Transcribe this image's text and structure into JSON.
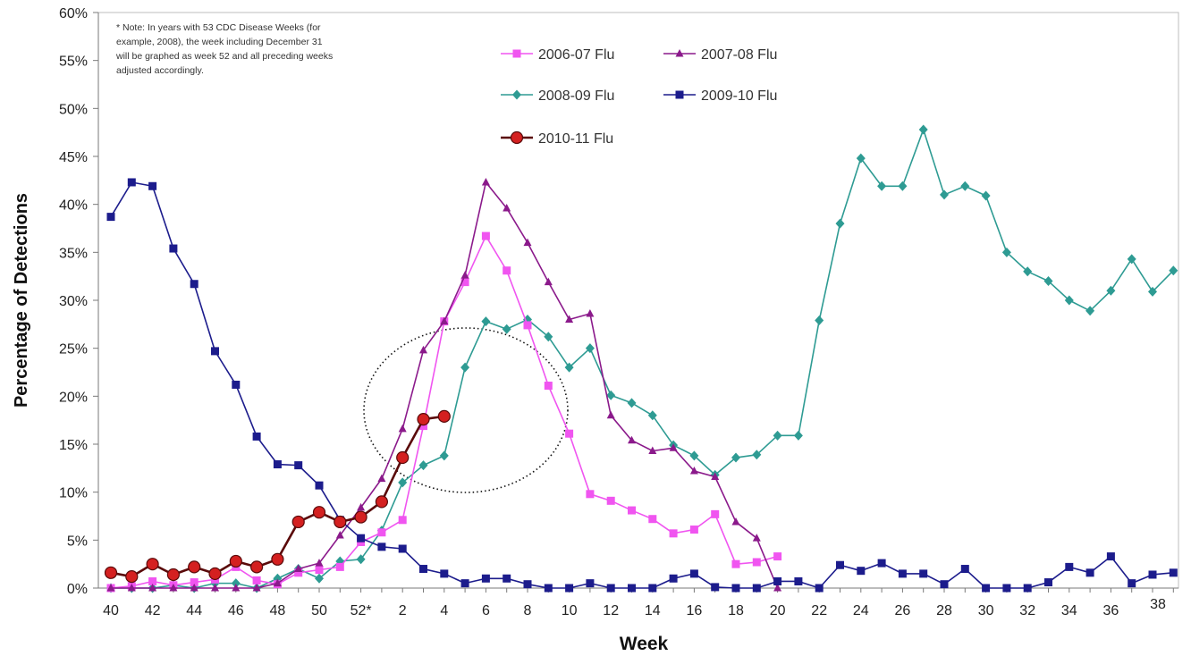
{
  "chart_data": {
    "type": "line",
    "ylabel": "Percentage of Detections",
    "xlabel": "Week",
    "ylim": [
      0,
      60
    ],
    "y_ticks": [
      "0%",
      "5%",
      "10%",
      "15%",
      "20%",
      "25%",
      "30%",
      "35%",
      "40%",
      "45%",
      "50%",
      "55%",
      "60%"
    ],
    "x_tick_labels": [
      "40",
      "42",
      "44",
      "46",
      "48",
      "50",
      "52*",
      "2",
      "4",
      "6",
      "8",
      "10",
      "12",
      "14",
      "16",
      "18",
      "20",
      "22",
      "24",
      "26",
      "28",
      "30",
      "32",
      "34",
      "36",
      "38"
    ],
    "x_categories": [
      "40",
      "41",
      "42",
      "43",
      "44",
      "45",
      "46",
      "47",
      "48",
      "49",
      "50",
      "51",
      "52",
      "1",
      "2",
      "3",
      "4",
      "5",
      "6",
      "7",
      "8",
      "9",
      "10",
      "11",
      "12",
      "13",
      "14",
      "15",
      "16",
      "17",
      "18",
      "19",
      "20",
      "21",
      "22",
      "23",
      "24",
      "25",
      "26",
      "27",
      "28",
      "29",
      "30",
      "31",
      "32",
      "33",
      "34",
      "35",
      "36",
      "37",
      "38",
      "39"
    ],
    "note": [
      "* Note: In years with 53 CDC Disease Weeks (for",
      "example, 2008), the week including December 31",
      "will be graphed as week 52 and all preceding weeks",
      "adjusted accordingly."
    ],
    "legend_placement": "top-center",
    "grid": false,
    "series": [
      {
        "name": "2006-07 Flu",
        "color": "#f055f0",
        "marker": "square",
        "values": [
          0,
          0.2,
          0.7,
          0.3,
          0.6,
          0.9,
          2.2,
          0.8,
          0.4,
          1.6,
          1.9,
          2.2,
          4.8,
          5.8,
          7.1,
          16.9,
          27.8,
          31.9,
          36.7,
          33.1,
          27.4,
          21.1,
          16.1,
          9.8,
          9.1,
          8.1,
          7.2,
          5.7,
          6.1,
          7.7,
          2.5,
          2.7,
          3.3
        ]
      },
      {
        "name": "2007-08 Flu",
        "color": "#8b1a8b",
        "marker": "triangle",
        "values": [
          0,
          0,
          0,
          0,
          0,
          0,
          0,
          0,
          0.5,
          2.0,
          2.6,
          5.5,
          8.4,
          11.4,
          16.6,
          24.8,
          27.8,
          32.6,
          42.3,
          39.6,
          36.0,
          31.9,
          28.0,
          28.6,
          18.0,
          15.4,
          14.3,
          14.6,
          12.2,
          11.6,
          6.9,
          5.2,
          0
        ]
      },
      {
        "name": "2008-09 Flu",
        "color": "#2e9b93",
        "marker": "diamond",
        "values": [
          0,
          0,
          0,
          0.3,
          0,
          0.5,
          0.5,
          0,
          1.0,
          2.0,
          1.0,
          2.8,
          3.0,
          6.0,
          11.0,
          12.8,
          13.8,
          23.0,
          27.8,
          27.0,
          28.0,
          26.2,
          23.0,
          25.0,
          20.1,
          19.3,
          18.0,
          14.9,
          13.8,
          11.8,
          13.6,
          13.9,
          15.9,
          15.9,
          27.9,
          38.0,
          44.8,
          41.9,
          41.9,
          47.8,
          41.0,
          41.9,
          40.9,
          35.0,
          33.0,
          32.0,
          30.0,
          28.9,
          31.0,
          34.3,
          30.9,
          33.1
        ]
      },
      {
        "name": "2009-10 Flu",
        "color": "#1c1c8c",
        "marker": "square",
        "values": [
          38.7,
          42.3,
          41.9,
          35.4,
          31.7,
          24.7,
          21.2,
          15.8,
          12.9,
          12.8,
          10.7,
          7.1,
          5.2,
          4.3,
          4.1,
          2.0,
          1.5,
          0.5,
          1.0,
          1.0,
          0.4,
          0,
          0,
          0.5,
          0,
          0,
          0,
          1.0,
          1.5,
          0.1,
          0,
          0,
          0.7,
          0.7,
          0,
          2.4,
          1.8,
          2.6,
          1.5,
          1.5,
          0.4,
          2.0,
          0,
          0,
          0,
          0.6,
          2.2,
          1.6,
          3.3,
          0.5,
          1.4,
          1.6
        ]
      },
      {
        "name": "2010-11 Flu",
        "color": "#d42020",
        "edge": "#5a0a0a",
        "marker": "circle",
        "values": [
          1.6,
          1.2,
          2.5,
          1.4,
          2.2,
          1.5,
          2.8,
          2.2,
          3.0,
          6.9,
          7.9,
          6.9,
          7.4,
          9.0,
          13.6,
          17.6,
          17.9
        ]
      }
    ]
  }
}
